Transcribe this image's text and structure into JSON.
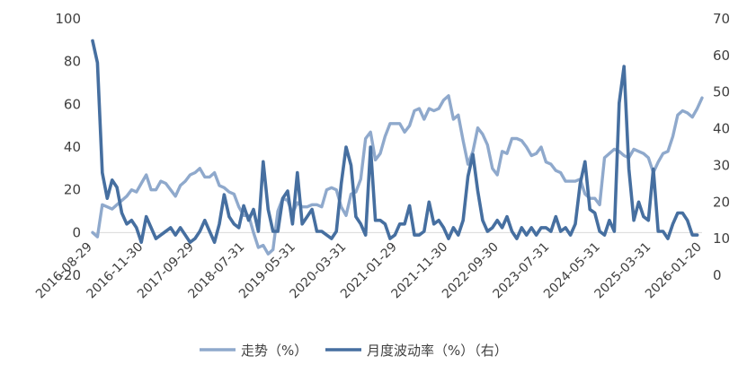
{
  "chart_data": {
    "type": "line",
    "x_tick_labels": [
      "2016-08-29",
      "2016-11-30",
      "2017-09-29",
      "2018-07-31",
      "2019-05-31",
      "2020-03-31",
      "2021-01-29",
      "2021-11-30",
      "2022-09-30",
      "2023-07-31",
      "2024-05-31",
      "2025-03-31",
      "2026-01-20"
    ],
    "left_axis": {
      "ylim": [
        -20,
        100
      ],
      "ticks": [
        -20,
        0,
        20,
        40,
        60,
        80,
        100
      ]
    },
    "right_axis": {
      "ylim": [
        0,
        70
      ],
      "ticks": [
        0,
        10,
        20,
        30,
        40,
        50,
        60,
        70
      ]
    },
    "highlight_region": {
      "x_start": 147,
      "x_end": 167,
      "color": "#f7f4d6"
    },
    "series": [
      {
        "name": "走势（%）",
        "axis": "left",
        "color": "#8fa9cc",
        "values": [
          0,
          -2,
          13,
          12,
          11,
          13,
          15,
          17,
          20,
          19,
          23,
          27,
          20,
          20,
          24,
          23,
          20,
          17,
          22,
          24,
          27,
          28,
          30,
          26,
          26,
          28,
          22,
          21,
          19,
          18,
          12,
          8,
          8,
          0,
          -7,
          -6,
          -10,
          -8,
          10,
          16,
          15,
          9,
          14,
          12,
          12,
          13,
          13,
          12,
          20,
          21,
          20,
          12,
          8,
          18,
          19,
          25,
          44,
          47,
          34,
          37,
          45,
          51,
          51,
          51,
          47,
          50,
          57,
          58,
          53,
          58,
          57,
          58,
          62,
          64,
          53,
          55,
          43,
          32,
          38,
          49,
          46,
          41,
          30,
          27,
          38,
          37,
          44,
          44,
          43,
          40,
          36,
          37,
          40,
          33,
          32,
          29,
          28,
          24,
          24,
          24,
          25,
          18,
          16,
          16,
          13,
          35,
          37,
          39,
          38,
          36,
          35,
          39,
          38,
          37,
          35,
          28,
          33,
          37,
          38,
          45,
          55,
          57,
          56,
          54,
          58,
          63
        ]
      },
      {
        "name": "月度波动率（%）（右）",
        "axis": "right",
        "color": "#466fa0",
        "values": [
          64,
          58,
          28,
          21,
          26,
          24,
          17,
          14,
          15,
          13,
          9,
          16,
          13,
          10,
          11,
          12,
          13,
          11,
          13,
          11,
          9,
          10,
          12,
          15,
          12,
          9,
          14,
          22,
          16,
          14,
          13,
          19,
          15,
          18,
          12,
          31,
          18,
          12,
          12,
          21,
          23,
          14,
          28,
          14,
          16,
          18,
          12,
          12,
          11,
          10,
          12,
          25,
          35,
          30,
          16,
          14,
          11,
          35,
          15,
          15,
          14,
          10,
          11,
          14,
          14,
          19,
          11,
          11,
          12,
          20,
          14,
          15,
          13,
          10,
          13,
          11,
          15,
          27,
          33,
          23,
          15,
          12,
          13,
          15,
          13,
          16,
          12,
          10,
          13,
          11,
          13,
          11,
          13,
          13,
          12,
          16,
          12,
          13,
          11,
          14,
          25,
          31,
          18,
          17,
          12,
          11,
          15,
          12,
          47,
          57,
          29,
          15,
          20,
          16,
          15,
          29,
          12,
          12,
          10,
          14,
          17,
          17,
          15,
          11,
          11
        ]
      }
    ],
    "legend_position": "bottom-center",
    "grid": false,
    "title": "",
    "xlabel": "",
    "ylabel": ""
  }
}
